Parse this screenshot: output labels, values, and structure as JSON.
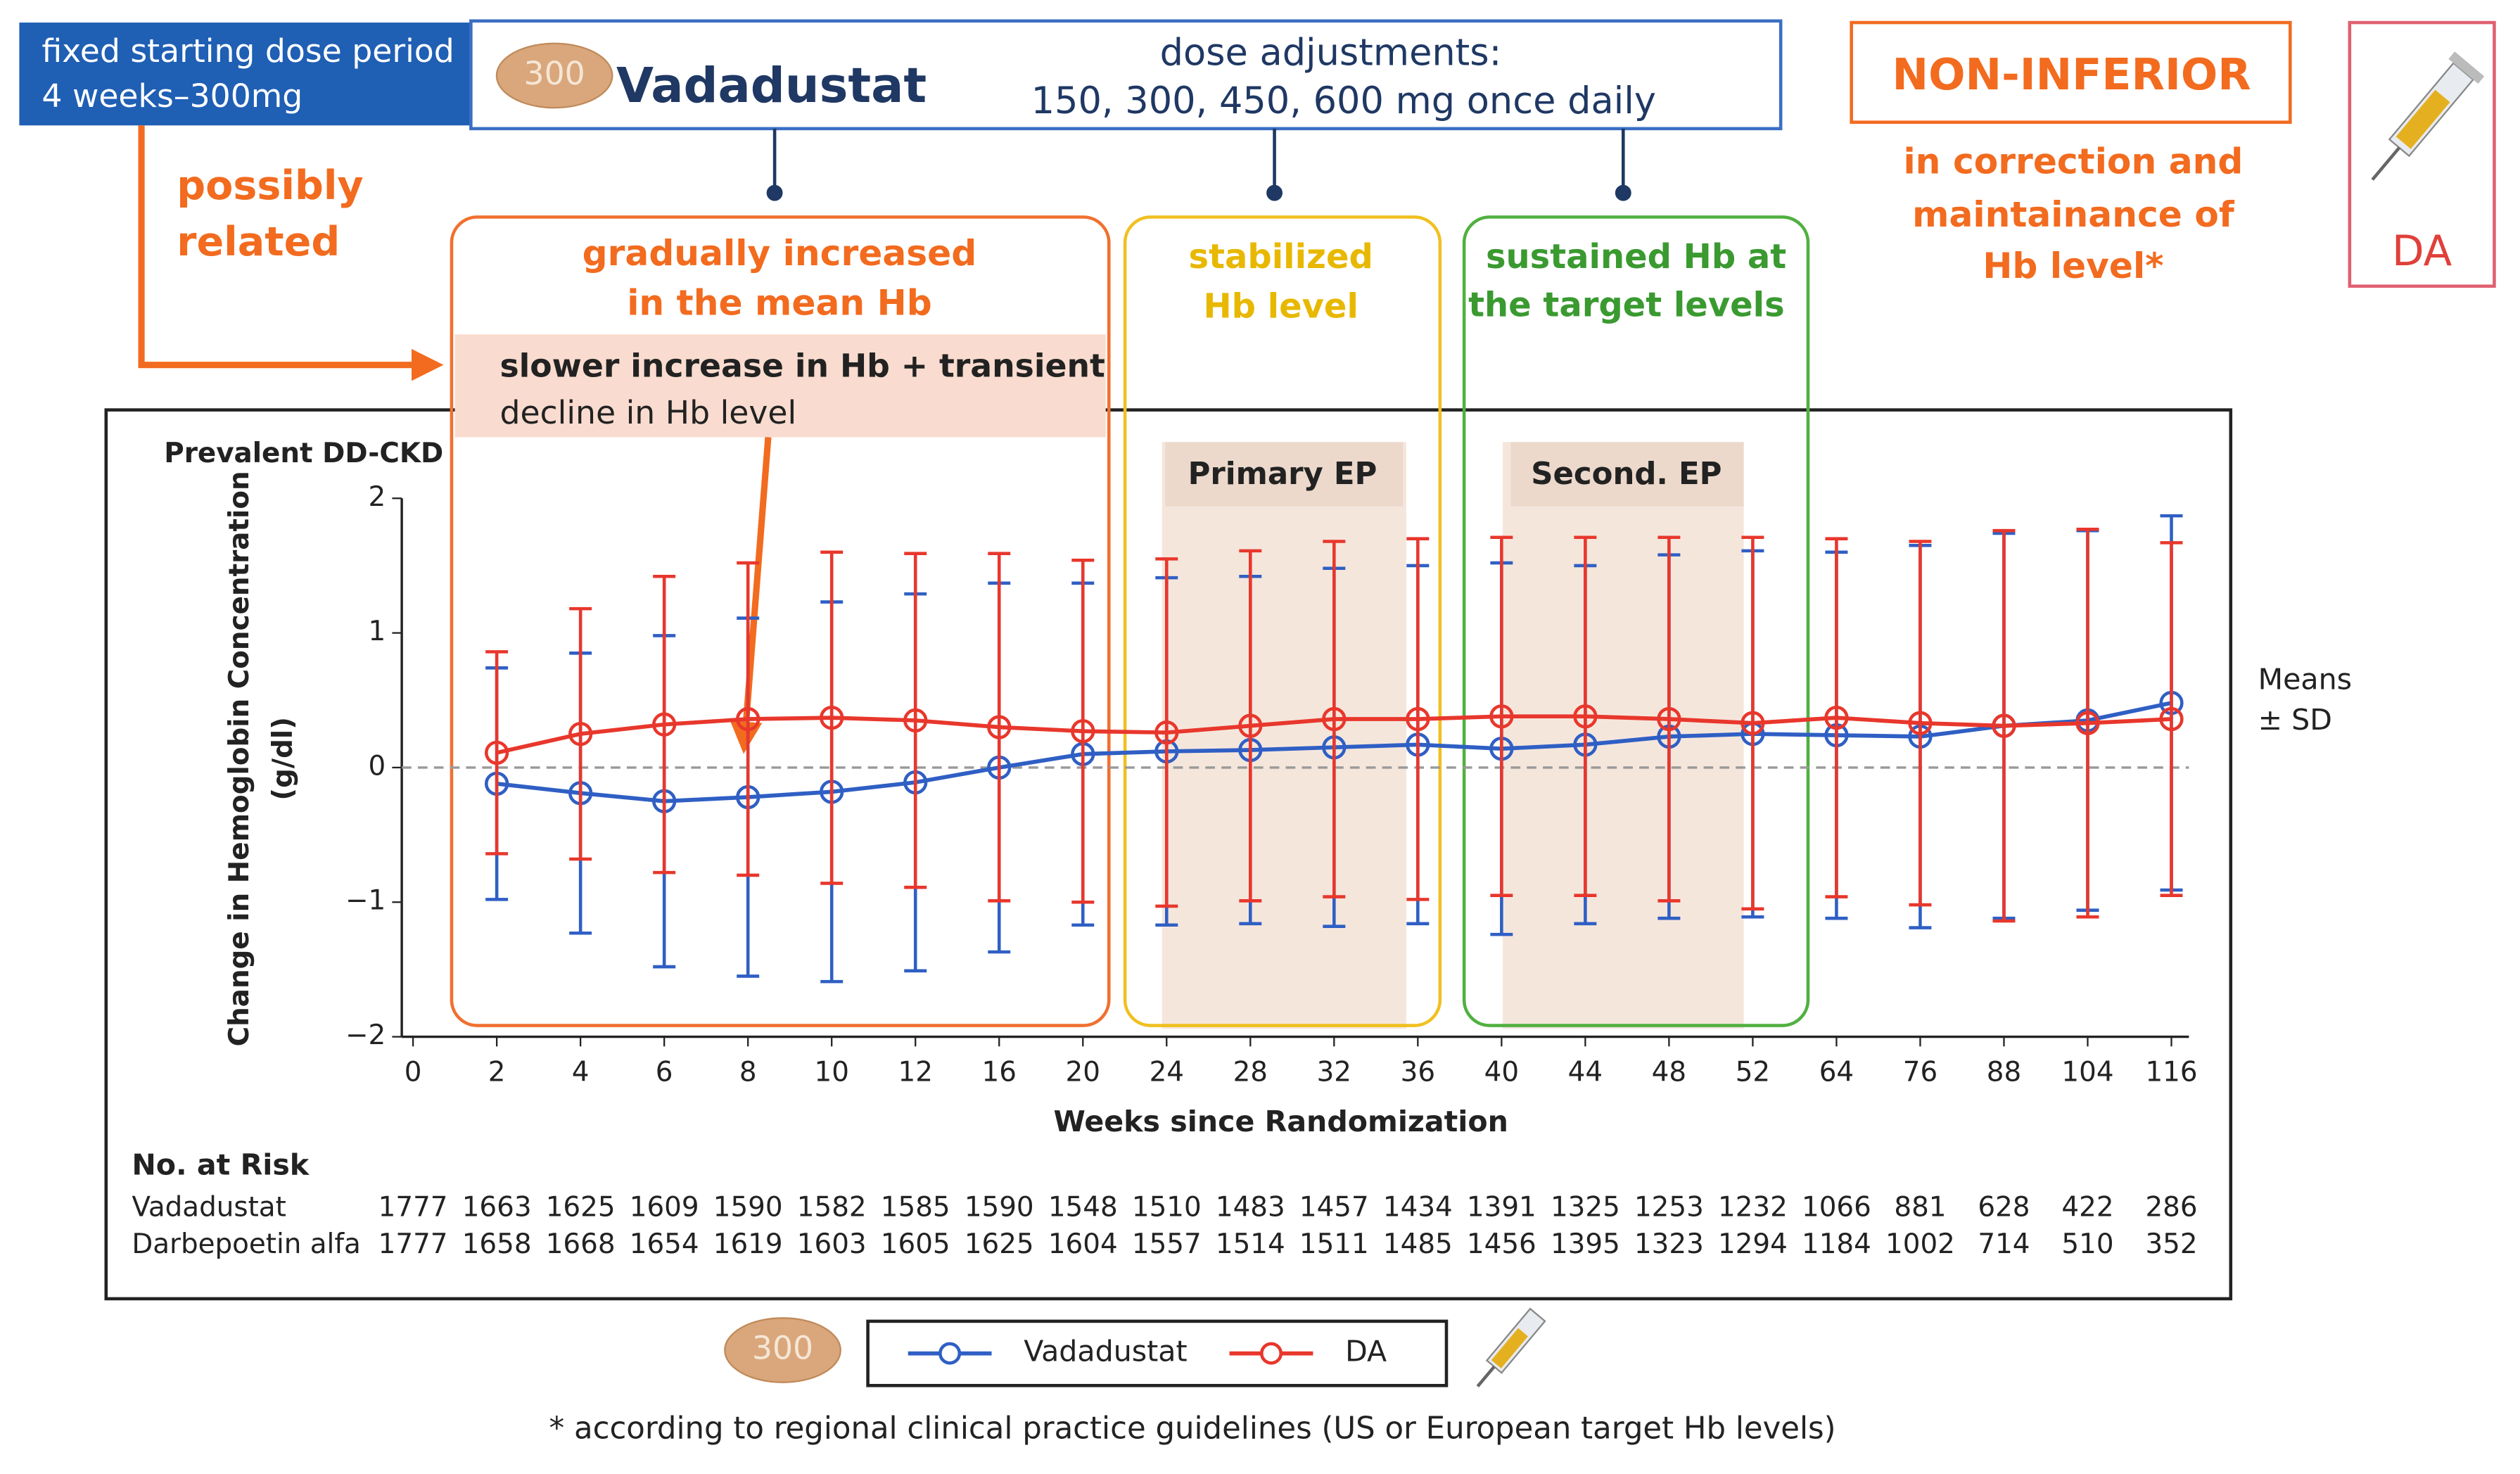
{
  "annotations": {
    "start_dose": [
      "fixed starting dose period",
      "4 weeks–300mg"
    ],
    "pill": "300",
    "drug": "Vadadustat",
    "dose_adjust": [
      "dose adjustments:",
      "150, 300, 450, 600 mg once daily"
    ],
    "verdict": "NON-INFERIOR",
    "verdict_note": [
      "in correction and",
      "maintainance of",
      "Hb level*"
    ],
    "comparator": "DA",
    "possibly": [
      "possibly",
      "related"
    ],
    "phase1": [
      "gradually increased",
      "in the mean Hb"
    ],
    "phase2": [
      "stabilized",
      "Hb level"
    ],
    "phase3": [
      "sustained Hb at",
      "the target levels"
    ],
    "callout": [
      "slower increase in Hb + transient",
      "decline in Hb level"
    ],
    "primary_ep": "Primary EP",
    "second_ep": "Second. EP",
    "means": [
      "Means",
      "± SD"
    ],
    "footnote": "* according to regional clinical practice guidelines (US or European target Hb levels)"
  },
  "chart_data": {
    "type": "line",
    "subtitle": "Prevalent DD-CKD",
    "xlabel": "Weeks since Randomization",
    "ylabel": [
      "Change in Hemoglobin Concentration",
      "(g/dl)"
    ],
    "categories": [
      "0",
      "2",
      "4",
      "6",
      "8",
      "10",
      "12",
      "16",
      "20",
      "24",
      "28",
      "32",
      "36",
      "40",
      "44",
      "48",
      "52",
      "64",
      "76",
      "88",
      "104",
      "116"
    ],
    "ylim": [
      -2,
      2
    ],
    "yticks": [
      {
        "value": -2,
        "label": "−2"
      },
      {
        "value": -1,
        "label": "−1"
      },
      0,
      1,
      2
    ],
    "series": [
      {
        "name": "Vadadustat",
        "color": "#2f5fc4",
        "values": [
          null,
          -0.12,
          -0.19,
          -0.25,
          -0.22,
          -0.18,
          -0.11,
          0.0,
          0.1,
          0.12,
          0.13,
          0.15,
          0.17,
          0.14,
          0.17,
          0.23,
          0.25,
          0.24,
          0.23,
          0.31,
          0.35,
          0.48
        ],
        "errors": [
          null,
          0.86,
          1.04,
          1.23,
          1.33,
          1.41,
          1.4,
          1.37,
          1.27,
          1.29,
          1.29,
          1.33,
          1.33,
          1.38,
          1.33,
          1.35,
          1.36,
          1.36,
          1.42,
          1.43,
          1.41,
          1.39
        ]
      },
      {
        "name": "DA",
        "color": "#e8372c",
        "values": [
          null,
          0.11,
          0.25,
          0.32,
          0.36,
          0.37,
          0.35,
          0.3,
          0.27,
          0.26,
          0.31,
          0.36,
          0.36,
          0.38,
          0.38,
          0.36,
          0.33,
          0.37,
          0.33,
          0.31,
          0.33,
          0.36
        ],
        "errors": [
          null,
          0.75,
          0.93,
          1.1,
          1.16,
          1.23,
          1.24,
          1.29,
          1.27,
          1.29,
          1.3,
          1.32,
          1.34,
          1.33,
          1.33,
          1.35,
          1.38,
          1.33,
          1.35,
          1.45,
          1.44,
          1.31
        ]
      }
    ],
    "risk_table": {
      "title": "No. at Risk",
      "rows": [
        {
          "label": "Vadadustat",
          "values": [
            1777,
            1663,
            1625,
            1609,
            1590,
            1582,
            1585,
            1590,
            1548,
            1510,
            1483,
            1457,
            1434,
            1391,
            1325,
            1253,
            1232,
            1066,
            881,
            628,
            422,
            286
          ]
        },
        {
          "label": "Darbepoetin alfa",
          "values": [
            1777,
            1658,
            1668,
            1654,
            1619,
            1603,
            1605,
            1625,
            1604,
            1557,
            1514,
            1511,
            1485,
            1456,
            1395,
            1323,
            1294,
            1184,
            1002,
            714,
            510,
            352
          ]
        }
      ]
    }
  }
}
